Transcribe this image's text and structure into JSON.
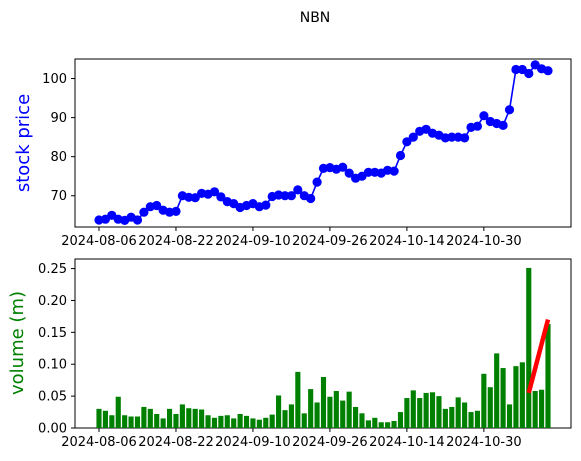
{
  "chart_data": [
    {
      "type": "line",
      "title": "NBN",
      "xlabel": "",
      "ylabel": "stock price",
      "ylabel_color": "#0000ff",
      "line_color": "#0000ff",
      "highlight_color": "#ff0000",
      "grid": false,
      "ylim": [
        62,
        105
      ],
      "yticks": [
        70,
        80,
        90,
        100
      ],
      "x_tick_labels": [
        "2024-08-06",
        "2024-08-22",
        "2024-09-10",
        "2024-09-26",
        "2024-10-14",
        "2024-10-30"
      ],
      "x_tick_index": [
        0,
        12,
        24,
        36,
        48,
        60
      ],
      "x_count": 71,
      "values": [
        63.8,
        64.0,
        65.0,
        64.0,
        63.7,
        64.5,
        63.8,
        65.8,
        67.2,
        67.5,
        66.3,
        65.8,
        66.0,
        70.0,
        69.6,
        69.5,
        70.6,
        70.4,
        71.0,
        69.7,
        68.5,
        68.0,
        67.0,
        67.5,
        68.0,
        67.2,
        67.6,
        69.8,
        70.2,
        70.0,
        70.0,
        71.5,
        70.0,
        69.3,
        73.5,
        77.0,
        77.2,
        76.8,
        77.3,
        75.8,
        74.5,
        75.0,
        76.0,
        76.0,
        75.8,
        76.5,
        76.3,
        80.3,
        83.8,
        85.0,
        86.5,
        87.0,
        86.0,
        85.5,
        84.8,
        85.0,
        85.0,
        84.8,
        87.5,
        87.8,
        90.5,
        89.0,
        88.5,
        88.0,
        92.0,
        102.3,
        102.3,
        101.3,
        103.5,
        102.5,
        102.0
      ],
      "highlight_segments": [
        [
          18,
          22
        ],
        [
          36,
          41
        ],
        [
          51,
          55
        ],
        [
          60,
          63
        ],
        [
          68,
          70
        ]
      ]
    },
    {
      "type": "bar",
      "title": "",
      "xlabel": "",
      "ylabel": "volume (m)",
      "ylabel_color": "#008000",
      "bar_color": "#008000",
      "trend_color": "#ff0000",
      "grid": false,
      "ylim": [
        0,
        0.265
      ],
      "yticks": [
        "0.00",
        "0.05",
        "0.10",
        "0.15",
        "0.20",
        "0.25"
      ],
      "x_tick_labels": [
        "2024-08-06",
        "2024-08-22",
        "2024-09-10",
        "2024-09-26",
        "2024-10-14",
        "2024-10-30"
      ],
      "x_tick_index": [
        0,
        12,
        24,
        36,
        48,
        60
      ],
      "values": [
        0.03,
        0.027,
        0.02,
        0.049,
        0.02,
        0.018,
        0.018,
        0.033,
        0.03,
        0.022,
        0.015,
        0.03,
        0.022,
        0.037,
        0.031,
        0.03,
        0.029,
        0.02,
        0.016,
        0.019,
        0.02,
        0.015,
        0.022,
        0.019,
        0.015,
        0.013,
        0.016,
        0.021,
        0.051,
        0.028,
        0.037,
        0.088,
        0.023,
        0.061,
        0.04,
        0.08,
        0.049,
        0.058,
        0.043,
        0.057,
        0.033,
        0.023,
        0.012,
        0.016,
        0.009,
        0.009,
        0.011,
        0.025,
        0.047,
        0.059,
        0.047,
        0.055,
        0.056,
        0.05,
        0.03,
        0.033,
        0.048,
        0.04,
        0.025,
        0.027,
        0.085,
        0.064,
        0.117,
        0.094,
        0.037,
        0.097,
        0.103,
        0.251,
        0.058,
        0.06,
        0.163
      ],
      "trend_line": {
        "from_index": 67,
        "to_index": 70,
        "from_value": 0.055,
        "to_value": 0.17
      }
    }
  ]
}
